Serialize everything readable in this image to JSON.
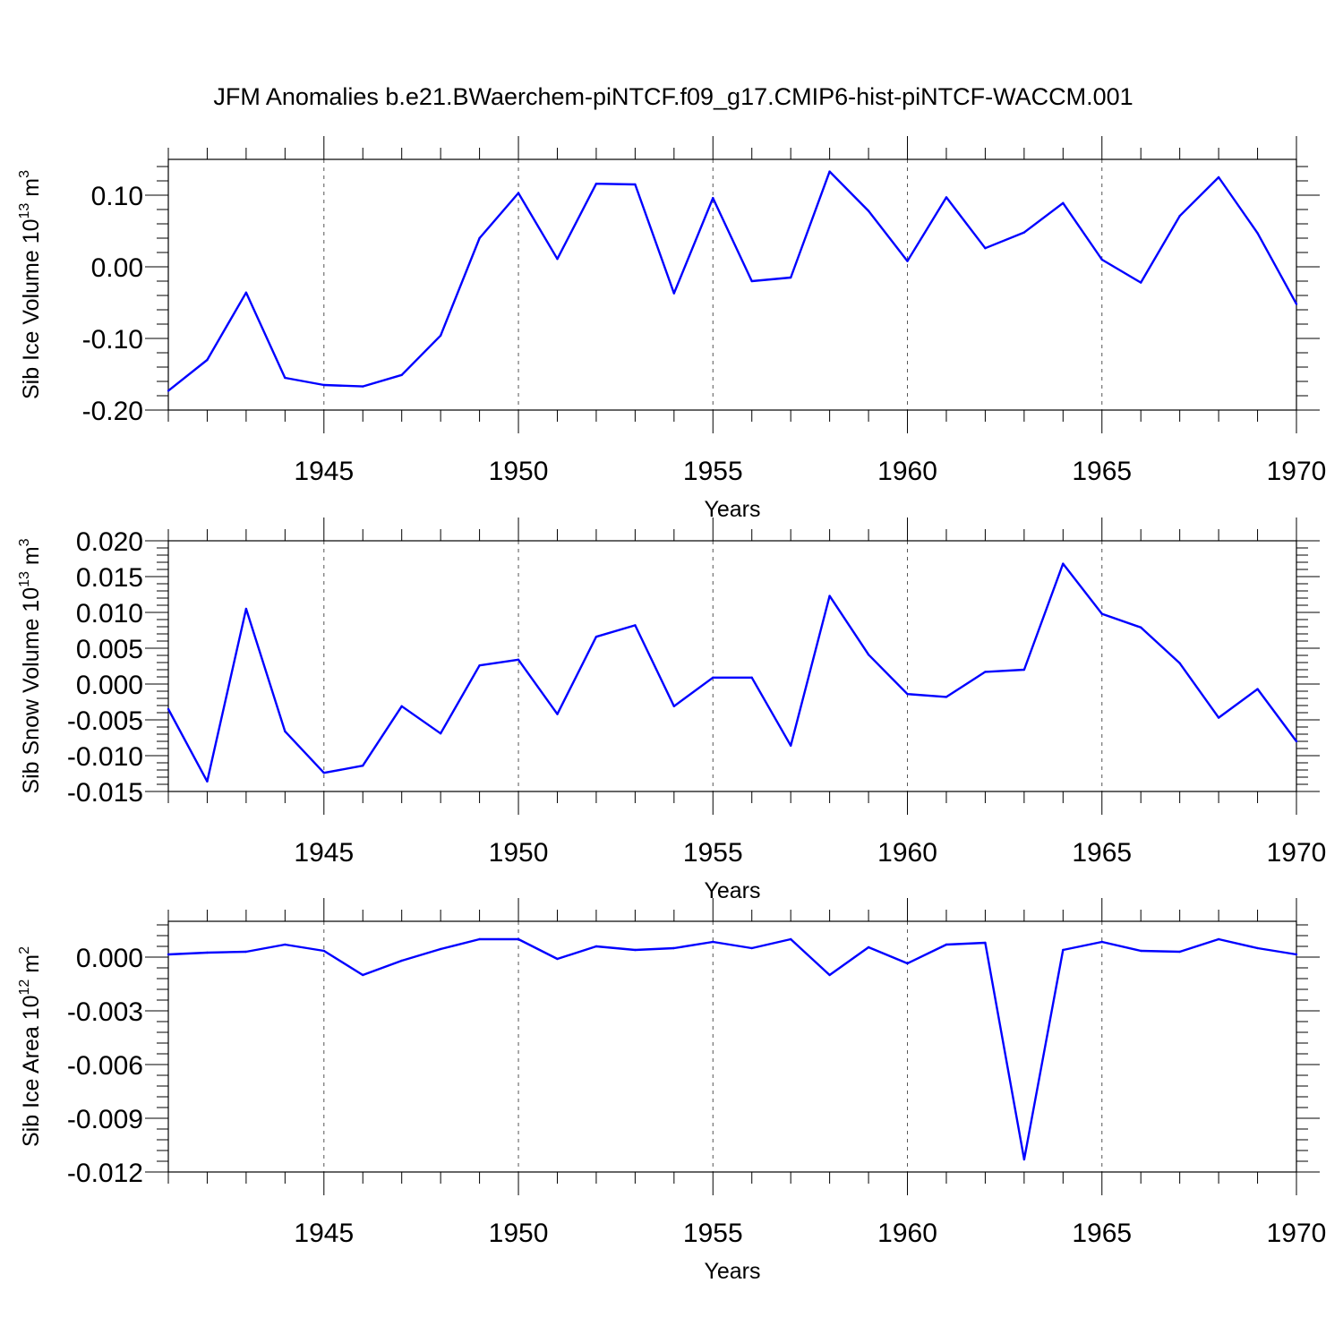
{
  "title": "JFM Anomalies b.e21.BWaerchem-piNTCF.f09_g17.CMIP6-hist-piNTCF-WACCM.001",
  "colors": {
    "line": "#0000ff",
    "grid": "#555555",
    "axis": "#000000"
  },
  "chart_data": [
    {
      "type": "line",
      "ylabel_main": "Sib Ice Volume 10",
      "ylabel_exp": "13",
      "ylabel_unit": " m",
      "ylabel_unit_exp": "3",
      "xlabel": "Years",
      "xlim": [
        1941,
        1970
      ],
      "ylim": [
        -0.2,
        0.15
      ],
      "xticks": [
        1945,
        1950,
        1955,
        1960,
        1965,
        1970
      ],
      "yticks": [
        -0.2,
        -0.1,
        0.0,
        0.1
      ],
      "ytick_labels": [
        "-0.20",
        "-0.10",
        "0.00",
        "0.10"
      ],
      "x": [
        1941,
        1942,
        1943,
        1944,
        1945,
        1946,
        1947,
        1948,
        1949,
        1950,
        1951,
        1952,
        1953,
        1954,
        1955,
        1956,
        1957,
        1958,
        1959,
        1960,
        1961,
        1962,
        1963,
        1964,
        1965,
        1966,
        1967,
        1968,
        1969,
        1970
      ],
      "values": [
        -0.173,
        -0.13,
        -0.036,
        -0.155,
        -0.165,
        -0.167,
        -0.151,
        -0.096,
        0.04,
        0.103,
        0.011,
        0.116,
        0.115,
        -0.037,
        0.096,
        -0.02,
        -0.015,
        0.133,
        0.078,
        0.008,
        0.097,
        0.026,
        0.048,
        0.089,
        0.01,
        -0.022,
        0.071,
        0.125,
        0.047,
        -0.052
      ]
    },
    {
      "type": "line",
      "ylabel_main": "Sib Snow Volume 10",
      "ylabel_exp": "13",
      "ylabel_unit": " m",
      "ylabel_unit_exp": "3",
      "xlabel": "Years",
      "xlim": [
        1941,
        1970
      ],
      "ylim": [
        -0.015,
        0.02
      ],
      "xticks": [
        1945,
        1950,
        1955,
        1960,
        1965,
        1970
      ],
      "yticks": [
        -0.015,
        -0.01,
        -0.005,
        0.0,
        0.005,
        0.01,
        0.015,
        0.02
      ],
      "ytick_labels": [
        "-0.015",
        "-0.010",
        "-0.005",
        "0.000",
        "0.005",
        "0.010",
        "0.015",
        "0.020"
      ],
      "x": [
        1941,
        1942,
        1943,
        1944,
        1945,
        1946,
        1947,
        1948,
        1949,
        1950,
        1951,
        1952,
        1953,
        1954,
        1955,
        1956,
        1957,
        1958,
        1959,
        1960,
        1961,
        1962,
        1963,
        1964,
        1965,
        1966,
        1967,
        1968,
        1969,
        1970
      ],
      "values": [
        -0.0035,
        -0.0136,
        0.0105,
        -0.0066,
        -0.0124,
        -0.0114,
        -0.0031,
        -0.0069,
        0.0026,
        0.0034,
        -0.0042,
        0.0066,
        0.0082,
        -0.0031,
        0.0009,
        0.0009,
        -0.0086,
        0.0123,
        0.0041,
        -0.0014,
        -0.0018,
        0.0017,
        0.002,
        0.0168,
        0.0098,
        0.0079,
        0.0029,
        -0.0047,
        -0.0007,
        -0.008
      ]
    },
    {
      "type": "line",
      "ylabel_main": "Sib Ice Area 10",
      "ylabel_exp": "12",
      "ylabel_unit": " m",
      "ylabel_unit_exp": "2",
      "xlabel": "Years",
      "xlim": [
        1941,
        1970
      ],
      "ylim": [
        -0.012,
        0.002
      ],
      "xticks": [
        1945,
        1950,
        1955,
        1960,
        1965,
        1970
      ],
      "yticks": [
        -0.012,
        -0.009,
        -0.006,
        -0.003,
        0.0
      ],
      "ytick_labels": [
        "-0.012",
        "-0.009",
        "-0.006",
        "-0.003",
        "0.000"
      ],
      "x": [
        1941,
        1942,
        1943,
        1944,
        1945,
        1946,
        1947,
        1948,
        1949,
        1950,
        1951,
        1952,
        1953,
        1954,
        1955,
        1956,
        1957,
        1958,
        1959,
        1960,
        1961,
        1962,
        1963,
        1964,
        1965,
        1966,
        1967,
        1968,
        1969,
        1970
      ],
      "values": [
        0.00015,
        0.00025,
        0.0003,
        0.0007,
        0.00035,
        -0.001,
        -0.0002,
        0.00045,
        0.001,
        0.001,
        -0.0001,
        0.0006,
        0.0004,
        0.0005,
        0.00085,
        0.0005,
        0.001,
        -0.001,
        0.00055,
        -0.00035,
        0.0007,
        0.0008,
        -0.0113,
        0.0004,
        0.00085,
        0.00035,
        0.0003,
        0.001,
        0.0005,
        0.00015
      ]
    }
  ]
}
